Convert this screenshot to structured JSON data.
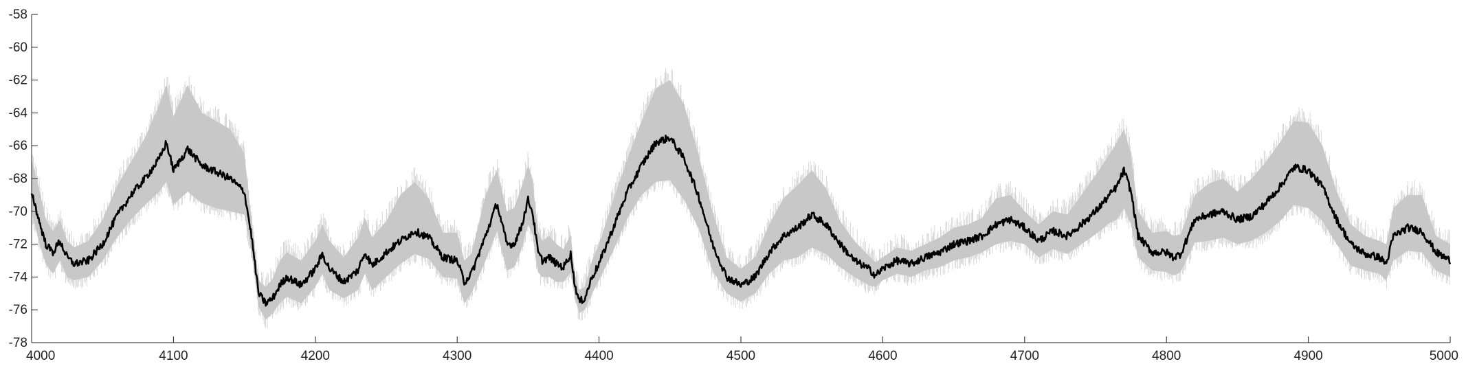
{
  "chart_data": {
    "type": "line",
    "title": "",
    "xlabel": "",
    "ylabel": "",
    "xlim": [
      4000,
      5000
    ],
    "ylim": [
      -78,
      -58
    ],
    "grid": false,
    "legend": "none",
    "x_ticks": [
      4000,
      4100,
      4200,
      4300,
      4400,
      4500,
      4600,
      4700,
      4800,
      4900,
      5000
    ],
    "y_ticks": [
      -58,
      -60,
      -62,
      -64,
      -66,
      -68,
      -70,
      -72,
      -74,
      -76,
      -78
    ],
    "x_tick_labels": [
      "4000",
      "4100",
      "4200",
      "4300",
      "4400",
      "4500",
      "4600",
      "4700",
      "4800",
      "4900",
      "5000"
    ],
    "y_tick_labels": [
      "-58",
      "-60",
      "-62",
      "-64",
      "-66",
      "-68",
      "-70",
      "-72",
      "-74",
      "-76",
      "-78"
    ],
    "series": [
      {
        "color": "#000000",
        "role": "mean",
        "x": [
          4000,
          4005,
          4010,
          4015,
          4020,
          4025,
          4030,
          4040,
          4050,
          4060,
          4070,
          4080,
          4090,
          4095,
          4100,
          4110,
          4120,
          4130,
          4140,
          4150,
          4155,
          4160,
          4165,
          4170,
          4175,
          4180,
          4190,
          4200,
          4205,
          4210,
          4220,
          4230,
          4235,
          4240,
          4250,
          4260,
          4270,
          4280,
          4290,
          4300,
          4305,
          4310,
          4320,
          4328,
          4335,
          4340,
          4345,
          4350,
          4353,
          4357,
          4360,
          4365,
          4370,
          4375,
          4380,
          4383,
          4386,
          4390,
          4395,
          4400,
          4410,
          4420,
          4430,
          4440,
          4450,
          4460,
          4470,
          4480,
          4490,
          4500,
          4510,
          4520,
          4530,
          4540,
          4550,
          4560,
          4570,
          4580,
          4590,
          4595,
          4600,
          4610,
          4620,
          4630,
          4640,
          4650,
          4660,
          4670,
          4680,
          4690,
          4700,
          4710,
          4720,
          4730,
          4740,
          4750,
          4760,
          4765,
          4770,
          4775,
          4780,
          4790,
          4800,
          4805,
          4810,
          4820,
          4830,
          4840,
          4850,
          4860,
          4870,
          4880,
          4890,
          4900,
          4910,
          4920,
          4930,
          4940,
          4950,
          4955,
          4960,
          4970,
          4980,
          4990,
          5000
        ],
        "y": [
          -68.8,
          -70.5,
          -72.0,
          -72.5,
          -71.8,
          -72.8,
          -73.2,
          -73.0,
          -72.0,
          -70.3,
          -69.0,
          -68.0,
          -66.8,
          -65.8,
          -67.5,
          -66.2,
          -67.2,
          -67.6,
          -68.0,
          -68.8,
          -71.5,
          -75.0,
          -75.6,
          -75.3,
          -74.5,
          -74.0,
          -74.5,
          -73.5,
          -72.6,
          -73.5,
          -74.3,
          -73.6,
          -72.5,
          -73.3,
          -72.5,
          -71.8,
          -71.2,
          -71.6,
          -72.8,
          -73.0,
          -74.3,
          -73.8,
          -71.5,
          -69.5,
          -72.0,
          -72.0,
          -71.0,
          -69.3,
          -70.0,
          -72.5,
          -73.0,
          -72.8,
          -73.2,
          -73.4,
          -72.6,
          -74.5,
          -75.5,
          -75.3,
          -74.0,
          -73.2,
          -71.0,
          -68.8,
          -67.2,
          -65.8,
          -65.5,
          -66.8,
          -69.0,
          -72.0,
          -74.0,
          -74.5,
          -74.0,
          -72.5,
          -71.5,
          -71.0,
          -70.2,
          -70.8,
          -72.0,
          -73.0,
          -73.5,
          -73.9,
          -73.5,
          -73.0,
          -73.2,
          -72.8,
          -72.5,
          -72.0,
          -71.8,
          -71.5,
          -70.8,
          -70.5,
          -71.0,
          -71.8,
          -71.2,
          -71.5,
          -70.8,
          -70.0,
          -69.0,
          -68.5,
          -67.5,
          -68.8,
          -71.5,
          -72.5,
          -72.5,
          -72.8,
          -72.6,
          -70.5,
          -70.2,
          -70.0,
          -70.5,
          -70.3,
          -69.5,
          -68.5,
          -67.3,
          -67.5,
          -68.5,
          -70.5,
          -72.0,
          -72.6,
          -72.8,
          -73.2,
          -71.5,
          -71.0,
          -71.2,
          -72.5,
          -73.0
        ]
      },
      {
        "color": "#c8c8c8",
        "role": "band",
        "x": [
          4000,
          4005,
          4010,
          4015,
          4020,
          4025,
          4030,
          4040,
          4050,
          4060,
          4070,
          4080,
          4090,
          4095,
          4100,
          4110,
          4120,
          4130,
          4140,
          4150,
          4155,
          4160,
          4165,
          4170,
          4175,
          4180,
          4190,
          4200,
          4205,
          4210,
          4220,
          4230,
          4235,
          4240,
          4250,
          4260,
          4270,
          4280,
          4290,
          4300,
          4305,
          4310,
          4320,
          4328,
          4335,
          4340,
          4345,
          4350,
          4353,
          4357,
          4360,
          4365,
          4370,
          4375,
          4380,
          4383,
          4386,
          4390,
          4395,
          4400,
          4410,
          4420,
          4430,
          4440,
          4450,
          4460,
          4470,
          4480,
          4490,
          4500,
          4510,
          4520,
          4530,
          4540,
          4550,
          4560,
          4570,
          4580,
          4590,
          4595,
          4600,
          4610,
          4620,
          4630,
          4640,
          4650,
          4660,
          4670,
          4680,
          4690,
          4700,
          4710,
          4720,
          4730,
          4740,
          4750,
          4760,
          4765,
          4770,
          4775,
          4780,
          4790,
          4800,
          4805,
          4810,
          4820,
          4830,
          4840,
          4850,
          4860,
          4870,
          4880,
          4890,
          4900,
          4910,
          4920,
          4930,
          4940,
          4950,
          4955,
          4960,
          4970,
          4980,
          4990,
          5000
        ],
        "upper": [
          -66.8,
          -68.5,
          -70.5,
          -71.2,
          -70.5,
          -71.8,
          -72.2,
          -71.8,
          -70.5,
          -68.5,
          -67.0,
          -65.5,
          -63.5,
          -62.3,
          -64.2,
          -62.3,
          -64.0,
          -64.5,
          -65.0,
          -66.5,
          -70.5,
          -74.2,
          -74.6,
          -74.1,
          -73.0,
          -72.5,
          -73.0,
          -71.8,
          -70.8,
          -71.8,
          -72.8,
          -71.6,
          -70.4,
          -71.6,
          -70.6,
          -69.0,
          -68.2,
          -69.2,
          -71.3,
          -71.3,
          -73.0,
          -72.6,
          -69.0,
          -67.5,
          -70.0,
          -69.8,
          -68.6,
          -67.2,
          -68.0,
          -71.2,
          -71.8,
          -71.5,
          -72.0,
          -72.3,
          -71.4,
          -73.8,
          -74.8,
          -74.6,
          -73.0,
          -72.0,
          -69.3,
          -66.8,
          -64.5,
          -62.5,
          -62.0,
          -63.5,
          -66.5,
          -70.0,
          -72.8,
          -73.5,
          -72.8,
          -70.8,
          -69.2,
          -68.4,
          -67.5,
          -68.6,
          -70.6,
          -71.8,
          -72.7,
          -73.1,
          -72.8,
          -72.2,
          -72.4,
          -72.0,
          -71.6,
          -71.0,
          -70.8,
          -70.4,
          -69.2,
          -69.0,
          -70.0,
          -70.8,
          -70.0,
          -70.2,
          -69.0,
          -67.8,
          -66.5,
          -65.8,
          -65.0,
          -66.5,
          -70.0,
          -71.3,
          -71.2,
          -71.5,
          -71.4,
          -69.0,
          -68.3,
          -68.0,
          -68.8,
          -68.0,
          -67.0,
          -65.8,
          -64.5,
          -64.6,
          -66.0,
          -68.8,
          -70.8,
          -71.5,
          -71.8,
          -72.0,
          -69.8,
          -69.0,
          -69.0,
          -71.5,
          -72.0
        ],
        "lower": [
          -70.0,
          -71.8,
          -73.2,
          -73.8,
          -73.0,
          -74.0,
          -74.2,
          -74.0,
          -73.0,
          -71.6,
          -70.5,
          -69.6,
          -68.8,
          -68.2,
          -69.6,
          -68.8,
          -69.5,
          -69.8,
          -70.0,
          -70.2,
          -72.5,
          -75.8,
          -76.6,
          -76.2,
          -75.6,
          -75.2,
          -75.6,
          -74.6,
          -73.8,
          -74.8,
          -75.3,
          -74.8,
          -73.8,
          -74.8,
          -74.0,
          -73.2,
          -72.6,
          -72.9,
          -74.0,
          -74.1,
          -75.6,
          -75.0,
          -73.0,
          -71.2,
          -73.6,
          -73.4,
          -72.4,
          -70.8,
          -71.4,
          -73.7,
          -74.0,
          -74.0,
          -74.3,
          -74.3,
          -73.7,
          -75.3,
          -76.2,
          -76.0,
          -75.0,
          -74.2,
          -72.4,
          -70.4,
          -69.0,
          -68.2,
          -68.1,
          -69.3,
          -71.0,
          -73.6,
          -75.0,
          -75.5,
          -75.0,
          -73.8,
          -73.0,
          -72.8,
          -72.2,
          -72.6,
          -73.4,
          -74.0,
          -74.5,
          -74.6,
          -74.2,
          -73.8,
          -74.0,
          -73.6,
          -73.4,
          -73.0,
          -72.8,
          -72.5,
          -72.0,
          -71.8,
          -72.0,
          -72.8,
          -72.3,
          -72.6,
          -72.0,
          -71.4,
          -70.7,
          -70.5,
          -69.8,
          -70.8,
          -72.8,
          -73.6,
          -73.7,
          -73.9,
          -73.7,
          -71.9,
          -71.8,
          -71.6,
          -72.0,
          -71.8,
          -71.3,
          -70.6,
          -69.6,
          -69.8,
          -70.6,
          -72.0,
          -73.3,
          -73.6,
          -73.8,
          -74.2,
          -73.0,
          -72.4,
          -72.5,
          -73.6,
          -74.0
        ]
      }
    ]
  }
}
